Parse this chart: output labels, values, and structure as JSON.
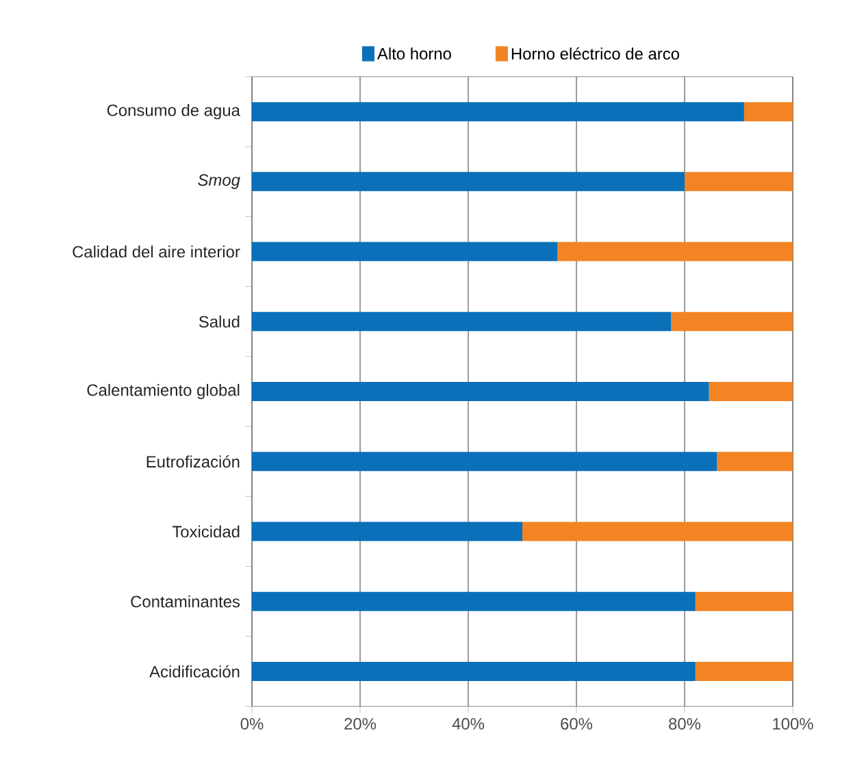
{
  "chart_data": {
    "type": "bar",
    "orientation": "horizontal",
    "stacked": true,
    "categories": [
      "Consumo de agua",
      "*Smog*",
      "Calidad del aire interior",
      "Salud",
      "Calentamiento global",
      "Eutrofización",
      "Toxicidad",
      "Contaminantes",
      "Acidificación"
    ],
    "series": [
      {
        "name": "Alto horno",
        "color": "#0a70b9",
        "values": [
          91,
          80,
          56.5,
          77.5,
          84.5,
          86,
          50,
          82,
          82
        ]
      },
      {
        "name": "Horno eléctrico de arco",
        "color": "#f28424",
        "values": [
          9,
          20,
          43.5,
          22.5,
          15.5,
          14,
          50,
          18,
          18
        ]
      }
    ],
    "xlim": [
      0,
      100
    ],
    "xticks": [
      {
        "value": 0,
        "label": "0%"
      },
      {
        "value": 20,
        "label": "20%"
      },
      {
        "value": 40,
        "label": "40%"
      },
      {
        "value": 60,
        "label": "60%"
      },
      {
        "value": 80,
        "label": "80%"
      },
      {
        "value": 100,
        "label": "100%"
      }
    ],
    "grid": "x",
    "legend": "top"
  }
}
